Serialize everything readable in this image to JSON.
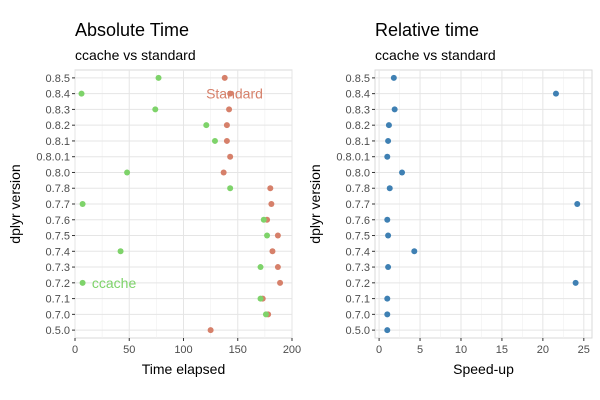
{
  "chart_data": [
    {
      "type": "scatter",
      "title": "Absolute Time",
      "subtitle": "ccache vs standard",
      "xlabel": "Time elapsed",
      "ylabel": "dplyr version",
      "xlim": [
        0,
        200
      ],
      "xticks": [
        "0",
        "50",
        "100",
        "150",
        "200"
      ],
      "categories": [
        "0.5.0",
        "0.7.0",
        "0.7.1",
        "0.7.2",
        "0.7.3",
        "0.7.4",
        "0.7.5",
        "0.7.6",
        "0.7.7",
        "0.7.8",
        "0.8.0",
        "0.8.0.1",
        "0.8.1",
        "0.8.2",
        "0.8.3",
        "0.8.4",
        "0.8.5"
      ],
      "grid": true,
      "series": [
        {
          "name": "Standard",
          "color": "#d6806a",
          "values": [
            125,
            178,
            173,
            189,
            187,
            182,
            187,
            177,
            181,
            180,
            137,
            143,
            140,
            140,
            142,
            143,
            138
          ]
        },
        {
          "name": "ccache",
          "color": "#7ed36a",
          "values": [
            null,
            176,
            171,
            7,
            171,
            42,
            177,
            174,
            7,
            143,
            48,
            null,
            129,
            121,
            74,
            6,
            77
          ]
        }
      ],
      "annotations": [
        {
          "text": "Standard",
          "series": "Standard",
          "x": 147,
          "y": "0.8.4"
        },
        {
          "text": "ccache",
          "series": "ccache",
          "x": 36,
          "y": "0.7.2"
        }
      ]
    },
    {
      "type": "scatter",
      "title": "Relative time",
      "subtitle": "ccache vs standard",
      "xlabel": "Speed-up",
      "ylabel": "dplyr version",
      "xlim": [
        -0.5,
        26
      ],
      "xticks": [
        "0",
        "5",
        "10",
        "15",
        "20",
        "25"
      ],
      "categories": [
        "0.5.0",
        "0.7.0",
        "0.7.1",
        "0.7.2",
        "0.7.3",
        "0.7.4",
        "0.7.5",
        "0.7.6",
        "0.7.7",
        "0.7.8",
        "0.8.0",
        "0.8.0.1",
        "0.8.1",
        "0.8.2",
        "0.8.3",
        "0.8.4",
        "0.8.5"
      ],
      "grid": true,
      "series": [
        {
          "color": "#3f80b3",
          "values": [
            1.0,
            1.0,
            1.0,
            24.0,
            1.1,
            4.3,
            1.1,
            1.0,
            24.2,
            1.3,
            2.8,
            1.0,
            1.1,
            1.2,
            1.9,
            21.6,
            1.8
          ]
        }
      ]
    }
  ]
}
